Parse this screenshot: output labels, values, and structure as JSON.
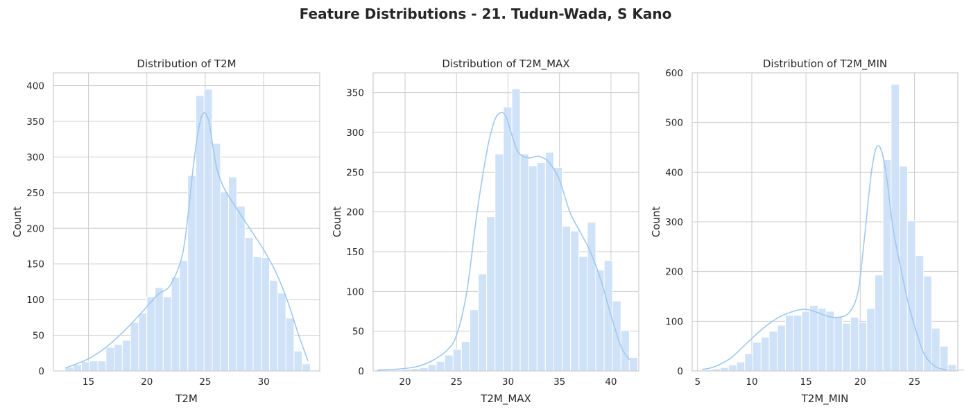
{
  "suptitle": "Feature Distributions - 21. Tudun-Wada, S Kano",
  "colors": {
    "bar_fill": "#cfe2f8",
    "bar_edge": "#ffffff",
    "kde_line": "#9fc8ef",
    "grid": "#cccccc",
    "spine": "#cccccc"
  },
  "chart_data": [
    {
      "type": "bar",
      "subtype": "histogram_with_kde",
      "title": "Distribution of T2M",
      "xlabel": "T2M",
      "ylabel": "Count",
      "xlim": [
        12.0,
        34.8
      ],
      "ylim": [
        0,
        418
      ],
      "xticks": [
        15,
        20,
        25,
        30
      ],
      "yticks": [
        0,
        50,
        100,
        150,
        200,
        250,
        300,
        350,
        400
      ],
      "grid": true,
      "bin_start": 13.0,
      "bin_width": 0.7,
      "values": [
        5,
        9,
        13,
        14,
        14,
        33,
        37,
        43,
        68,
        81,
        104,
        117,
        104,
        131,
        155,
        274,
        386,
        395,
        319,
        251,
        272,
        231,
        187,
        160,
        159,
        127,
        109,
        74,
        28,
        10
      ],
      "kde_x": [
        13.0,
        14.0,
        15.0,
        16.0,
        17.0,
        18.0,
        19.0,
        20.0,
        21.0,
        22.0,
        23.0,
        23.5,
        24.0,
        24.5,
        24.9,
        25.3,
        25.7,
        26.0,
        26.5,
        27.0,
        28.0,
        29.0,
        30.0,
        31.0,
        32.0,
        33.0,
        33.8
      ],
      "kde_y": [
        4,
        10,
        17,
        27,
        40,
        55,
        72,
        90,
        108,
        120,
        160,
        215,
        290,
        345,
        362,
        350,
        310,
        283,
        260,
        245,
        220,
        195,
        170,
        140,
        100,
        50,
        14
      ]
    },
    {
      "type": "bar",
      "subtype": "histogram_with_kde",
      "title": "Distribution of T2M_MAX",
      "xlabel": "T2M_MAX",
      "ylabel": "Count",
      "xlim": [
        16.9,
        42.7
      ],
      "ylim": [
        0,
        375
      ],
      "xticks": [
        20,
        25,
        30,
        35,
        40
      ],
      "yticks": [
        0,
        50,
        100,
        150,
        200,
        250,
        300,
        350
      ],
      "grid": true,
      "bin_start": 17.33,
      "bin_width": 0.815,
      "values": [
        1,
        1,
        1,
        2,
        3,
        4,
        8,
        12,
        20,
        27,
        37,
        77,
        122,
        194,
        273,
        332,
        355,
        273,
        258,
        262,
        275,
        256,
        182,
        176,
        144,
        187,
        127,
        139,
        88,
        51,
        17
      ],
      "kde_x": [
        17.3,
        19.0,
        21.0,
        22.5,
        24.0,
        25.0,
        26.0,
        27.0,
        28.0,
        28.7,
        29.3,
        29.8,
        30.3,
        31.0,
        32.0,
        33.0,
        34.0,
        35.0,
        36.0,
        37.0,
        38.0,
        39.0,
        40.0,
        41.0,
        41.8
      ],
      "kde_y": [
        1,
        2,
        5,
        12,
        25,
        45,
        100,
        200,
        280,
        315,
        325,
        320,
        300,
        275,
        268,
        270,
        262,
        240,
        200,
        175,
        150,
        115,
        70,
        30,
        14
      ]
    },
    {
      "type": "bar",
      "subtype": "histogram_with_kde",
      "title": "Distribution of T2M_MIN",
      "xlabel": "T2M_MIN",
      "ylabel": "Count",
      "xlim": [
        4.5,
        29.0
      ],
      "ylim": [
        0,
        600
      ],
      "xticks": [
        5,
        10,
        15,
        20,
        25
      ],
      "yticks": [
        0,
        100,
        200,
        300,
        400,
        500,
        600
      ],
      "grid": true,
      "bin_start": 5.6,
      "bin_width": 0.75,
      "values": [
        2,
        4,
        7,
        12,
        18,
        35,
        58,
        68,
        80,
        92,
        112,
        112,
        120,
        132,
        126,
        120,
        110,
        96,
        108,
        98,
        126,
        193,
        425,
        577,
        412,
        302,
        232,
        191,
        86,
        50,
        13,
        4
      ],
      "kde_x": [
        5.4,
        6.5,
        8.0,
        9.5,
        11.0,
        12.5,
        14.0,
        15.0,
        16.0,
        17.0,
        18.0,
        19.0,
        19.8,
        20.4,
        21.0,
        21.5,
        22.0,
        22.5,
        23.0,
        23.8,
        24.5,
        25.3,
        26.0,
        27.0,
        28.0
      ],
      "kde_y": [
        3,
        8,
        25,
        55,
        85,
        108,
        121,
        124,
        118,
        110,
        108,
        118,
        160,
        270,
        395,
        450,
        440,
        380,
        290,
        200,
        130,
        70,
        30,
        8,
        2
      ]
    }
  ]
}
